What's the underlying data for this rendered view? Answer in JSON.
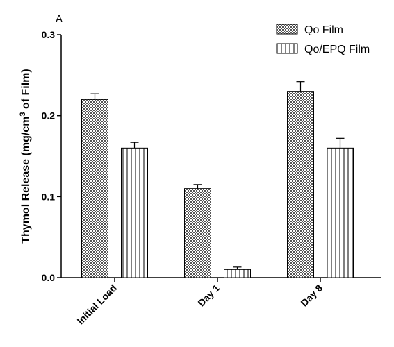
{
  "chart_data": {
    "type": "bar",
    "panel_label": "A",
    "ylabel": "Thymol Release (mg/cm",
    "ylabel_sup": "3",
    "ylabel_suffix": " of Film)",
    "xlabel": "",
    "categories": [
      "Initial Load",
      "Day 1",
      "Day 8"
    ],
    "ylim": [
      0,
      0.3
    ],
    "yticks": [
      0.0,
      0.1,
      0.2,
      0.3
    ],
    "ytick_labels": [
      "0.0",
      "0.1",
      "0.2",
      "0.3"
    ],
    "series": [
      {
        "name": "Qo Film",
        "pattern": "crosshatch",
        "values": [
          0.22,
          0.11,
          0.23
        ],
        "errors": [
          0.007,
          0.005,
          0.012
        ]
      },
      {
        "name": "Qo/EPQ Film",
        "pattern": "vertical-lines",
        "values": [
          0.16,
          0.01,
          0.16
        ],
        "errors": [
          0.007,
          0.003,
          0.012
        ]
      }
    ],
    "legend_position": "top-right",
    "grid": false
  }
}
